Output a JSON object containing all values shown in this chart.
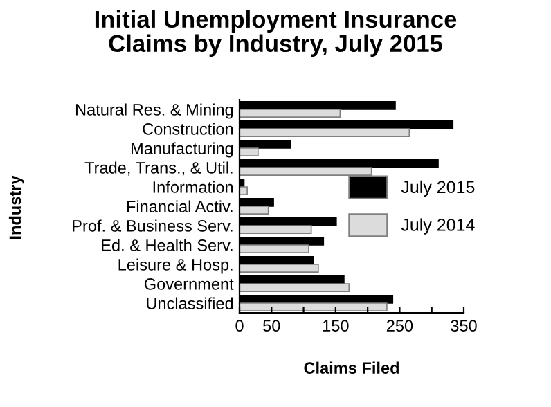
{
  "chart_data": {
    "type": "bar",
    "orientation": "horizontal",
    "title": "Initial Unemployment Insurance\nClaims by Industry, July 2015",
    "xlabel": "Claims Filed",
    "ylabel": "Industry",
    "categories": [
      "Natural Res. & Mining",
      "Construction",
      "Manufacturing",
      "Trade, Trans., & Util.",
      "Information",
      "Financial Activ.",
      "Prof. & Business Serv.",
      "Ed. & Health Serv.",
      "Leisure & Hosp.",
      "Government",
      "Unclassified"
    ],
    "series": [
      {
        "name": "July 2015",
        "color": "#000000",
        "values": [
          243,
          333,
          80,
          310,
          7,
          53,
          151,
          131,
          115,
          163,
          239
        ]
      },
      {
        "name": "July 2014",
        "color": "#dcdcdc",
        "values": [
          157,
          265,
          29,
          206,
          12,
          45,
          112,
          108,
          123,
          171,
          230
        ]
      }
    ],
    "xlim": [
      0,
      350
    ],
    "xticks": [
      0,
      50,
      {
        "value": 100,
        "label": null
      },
      150,
      {
        "value": 200,
        "label": null
      },
      250,
      {
        "value": 300,
        "label": null
      },
      350
    ],
    "grid": false,
    "legend": "right"
  }
}
